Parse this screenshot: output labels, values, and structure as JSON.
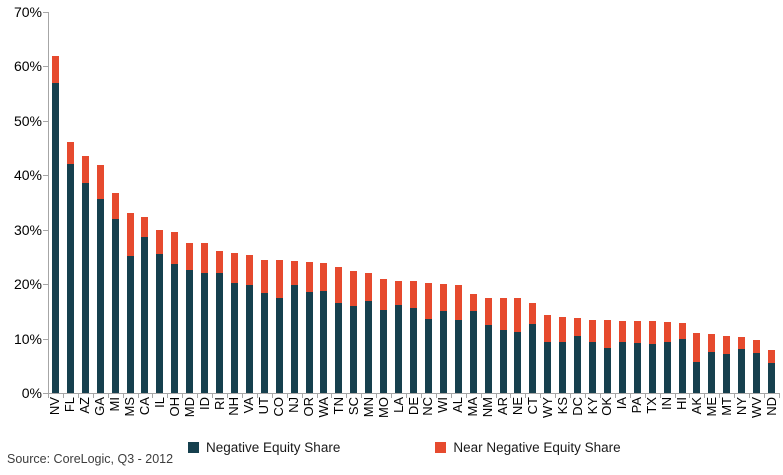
{
  "source_note": "Source: CoreLogic, Q3 - 2012",
  "chart_data": {
    "type": "bar",
    "stacked": true,
    "title": "",
    "xlabel": "",
    "ylabel": "",
    "ylim": [
      0,
      70
    ],
    "grid": false,
    "legend_position": "bottom",
    "y_ticks": [
      "0%",
      "10%",
      "20%",
      "30%",
      "40%",
      "50%",
      "60%",
      "70%"
    ],
    "categories": [
      "NV",
      "FL",
      "AZ",
      "GA",
      "MI",
      "MS",
      "CA",
      "IL",
      "OH",
      "MD",
      "ID",
      "RI",
      "NH",
      "VA",
      "UT",
      "CO",
      "NJ",
      "OR",
      "WA",
      "TN",
      "SC",
      "MN",
      "MO",
      "LA",
      "DE",
      "NC",
      "WI",
      "AL",
      "MA",
      "NM",
      "AR",
      "NE",
      "CT",
      "WY",
      "KS",
      "DC",
      "KY",
      "OK",
      "IA",
      "PA",
      "TX",
      "IN",
      "HI",
      "AK",
      "ME",
      "MT",
      "NY",
      "WV",
      "ND"
    ],
    "series": [
      {
        "name": "Negative Equity Share",
        "color": "#16404E",
        "values": [
          57.0,
          42.1,
          38.6,
          35.6,
          32.0,
          25.2,
          28.6,
          25.6,
          23.7,
          22.6,
          22.0,
          22.1,
          20.3,
          19.9,
          18.3,
          17.5,
          19.9,
          18.5,
          18.8,
          16.6,
          16.0,
          16.9,
          15.3,
          16.2,
          15.6,
          13.6,
          15.0,
          13.5,
          15.1,
          12.5,
          11.5,
          11.2,
          12.6,
          9.3,
          9.3,
          10.4,
          9.4,
          8.2,
          9.3,
          9.1,
          9.0,
          9.3,
          9.9,
          5.7,
          7.6,
          7.1,
          8.0,
          7.3,
          5.6
        ]
      },
      {
        "name": "Near Negative Equity Share",
        "color": "#E64A2E",
        "values": [
          5.0,
          4.1,
          5.0,
          6.2,
          4.8,
          7.9,
          3.8,
          4.4,
          5.8,
          5.0,
          5.5,
          3.9,
          5.4,
          5.5,
          6.2,
          6.9,
          4.3,
          5.5,
          5.1,
          6.6,
          6.4,
          5.1,
          5.6,
          4.4,
          4.9,
          6.6,
          5.1,
          6.3,
          3.1,
          5.0,
          6.0,
          6.2,
          4.0,
          5.0,
          4.7,
          3.4,
          4.1,
          5.2,
          4.0,
          4.2,
          4.2,
          3.8,
          3.0,
          5.3,
          3.2,
          3.4,
          2.3,
          2.4,
          2.3
        ]
      }
    ]
  }
}
